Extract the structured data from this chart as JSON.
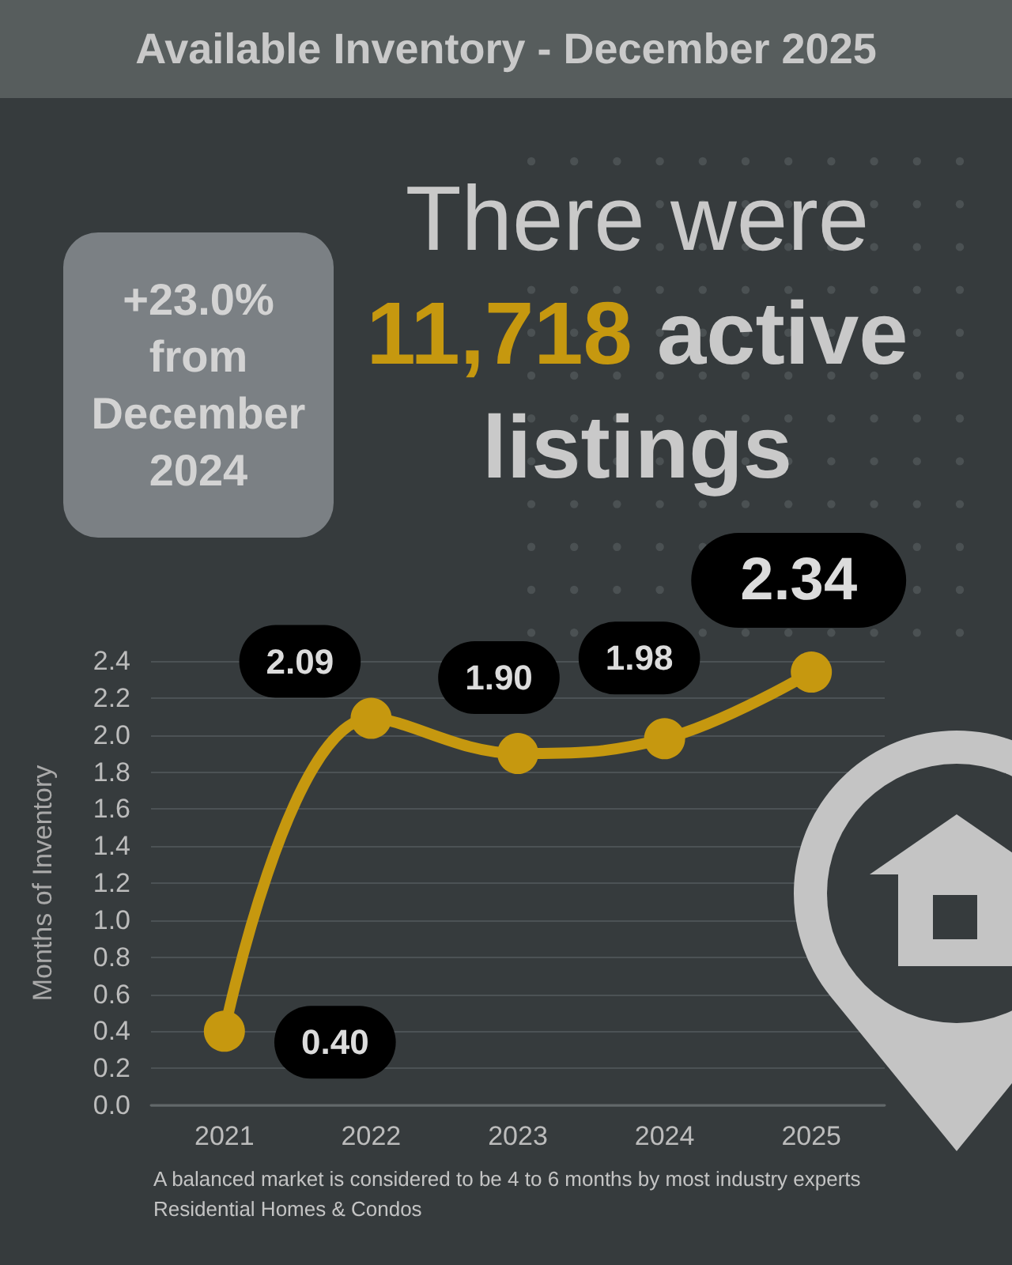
{
  "chart_data": {
    "type": "line",
    "title": "Available Inventory - December 2025",
    "ylabel": "Months of Inventory",
    "categories": [
      "2021",
      "2022",
      "2023",
      "2024",
      "2025"
    ],
    "values": [
      0.4,
      2.09,
      1.9,
      1.98,
      2.34
    ],
    "color": "#c6980f",
    "value_labels": [
      "0.40",
      "2.09",
      "1.90",
      "1.98",
      "2.34"
    ],
    "ylim": [
      0,
      2.4
    ],
    "yticks": [
      {
        "value": 0,
        "label": "0.0"
      },
      {
        "value": 0.2,
        "label": "0.2"
      },
      {
        "value": 0.4,
        "label": "0.4"
      },
      {
        "value": 0.6,
        "label": "0.6"
      },
      {
        "value": 0.8,
        "label": "0.8"
      },
      {
        "value": 1,
        "label": "1.0"
      },
      {
        "value": 1.2,
        "label": "1.2"
      },
      {
        "value": 1.4,
        "label": "1.4"
      },
      {
        "value": 1.6,
        "label": "1.6"
      },
      {
        "value": 1.8,
        "label": "1.8"
      },
      {
        "value": 2,
        "label": "2.0"
      },
      {
        "value": 2.2,
        "label": "2.2"
      },
      {
        "value": 2.4,
        "label": "2.4"
      }
    ],
    "grid": "y",
    "marker": "circle",
    "line_style": "solid",
    "annotations": [
      "+23.0% from December 2024",
      "There were",
      "11,718",
      "active",
      "listings",
      "A balanced market is considered to be 4 to 6 months by most industry experts",
      "Residential Homes & Condos"
    ]
  }
}
